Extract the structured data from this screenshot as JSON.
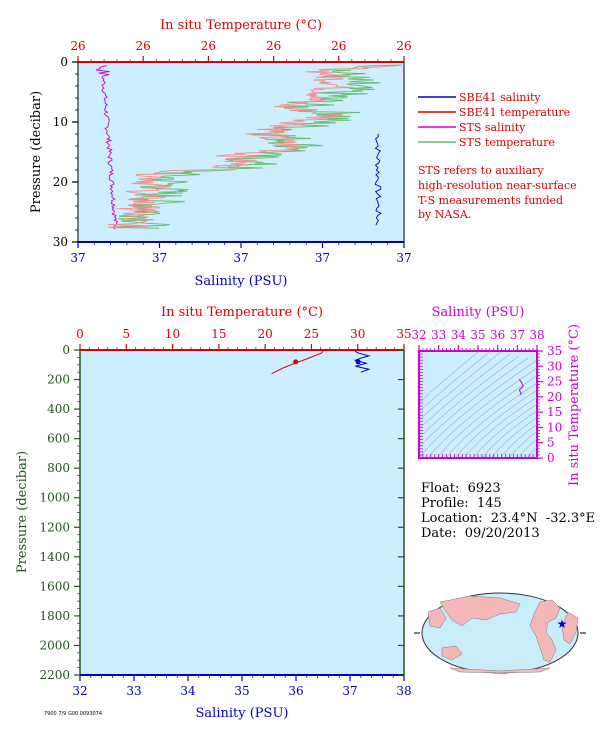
{
  "colors": {
    "plot_bg": "#cceeff",
    "red": "#dd0000",
    "blue": "#0000cc",
    "magenta": "#cc00cc",
    "green": "#66bb66",
    "salmon": "#f29090",
    "pressure_axis": "#225522",
    "map_ocean": "#c8ecf8",
    "map_land": "#f4b8b8"
  },
  "top_panel": {
    "top_axis_label": "In situ Temperature (°C)",
    "top_ticks": [
      "26",
      "26",
      "26",
      "26",
      "26",
      "26"
    ],
    "bottom_axis_label": "Salinity (PSU)",
    "bottom_ticks": [
      "37",
      "37",
      "37",
      "37",
      "37"
    ],
    "left_axis_label": "Pressure (decibar)",
    "left_ticks": [
      "0",
      "10",
      "20",
      "30"
    ]
  },
  "legend": {
    "items": [
      {
        "label": "SBE41 salinity",
        "color": "#0000cc"
      },
      {
        "label": "SBE41 temperature",
        "color": "#dd0000"
      },
      {
        "label": "STS salinity",
        "color": "#cc00cc"
      },
      {
        "label": "STS temperature",
        "color": "#66bb66"
      }
    ],
    "note": [
      "STS refers to auxiliary",
      "high-resolution near-surface",
      "T-S measurements funded",
      "by NASA."
    ]
  },
  "bottom_panel": {
    "top_axis_label": "In situ Temperature (°C)",
    "top_ticks": [
      "0",
      "5",
      "10",
      "15",
      "20",
      "25",
      "30",
      "35"
    ],
    "bottom_axis_label": "Salinity (PSU)",
    "bottom_ticks": [
      "32",
      "33",
      "34",
      "35",
      "36",
      "37",
      "38"
    ],
    "left_axis_label": "Pressure (decibar)",
    "left_ticks": [
      "0",
      "200",
      "400",
      "600",
      "800",
      "1000",
      "1200",
      "1400",
      "1600",
      "1800",
      "2000",
      "2200"
    ]
  },
  "ts_panel": {
    "top_axis_label": "Salinity (PSU)",
    "top_ticks": [
      "32",
      "33",
      "34",
      "35",
      "36",
      "37",
      "38"
    ],
    "right_axis_label": "In situ Temperature (°C)",
    "right_ticks": [
      "0",
      "5",
      "10",
      "15",
      "20",
      "25",
      "30",
      "35"
    ]
  },
  "float_info": {
    "float": "Float:  6923",
    "profile": "Profile:  145",
    "location": "Location:  23.4°N  -32.3°E",
    "date": "Date:  09/20/2013"
  },
  "footer": "7900 7/9 G00 0093074",
  "chart_data": [
    {
      "type": "line",
      "title": "",
      "xlabel": "Salinity (PSU)",
      "x2label": "In situ Temperature (°C)",
      "ylabel": "Pressure (decibar)",
      "ylim": [
        30,
        0
      ],
      "series": [
        {
          "name": "SBE41 salinity",
          "axis": "salinity",
          "x": [
            37.45,
            37.45,
            37.44,
            37.45,
            37.44,
            37.44,
            37.43,
            37.43
          ],
          "y": [
            4,
            8,
            11,
            14,
            17,
            20,
            24,
            28
          ]
        },
        {
          "name": "SBE41 temperature",
          "axis": "temperature",
          "x": [
            26.55,
            26.45,
            26.42,
            26.3,
            26.25,
            26.1,
            26.0,
            25.95,
            25.92
          ],
          "y": [
            2,
            5,
            9,
            12,
            16,
            19,
            22,
            25,
            28
          ]
        },
        {
          "name": "STS salinity",
          "axis": "salinity",
          "x": [
            36.98,
            37.0,
            37.0,
            37.0,
            37.01,
            37.01,
            37.02,
            37.02,
            37.03
          ],
          "y": [
            1,
            4,
            8,
            12,
            16,
            20,
            23,
            26,
            28
          ]
        },
        {
          "name": "STS temperature",
          "axis": "temperature",
          "x": [
            26.55,
            26.48,
            26.45,
            26.35,
            26.28,
            26.12,
            26.02,
            25.98,
            25.95
          ],
          "y": [
            1,
            4,
            8,
            12,
            16,
            19,
            22,
            25,
            28
          ]
        }
      ]
    },
    {
      "type": "line",
      "title": "",
      "xlabel": "Salinity (PSU)",
      "x2label": "In situ Temperature (°C)",
      "ylabel": "Pressure (decibar)",
      "xlim": [
        32,
        38
      ],
      "x2lim": [
        0,
        35
      ],
      "ylim": [
        2200,
        0
      ],
      "series": [
        {
          "name": "SBE41 salinity",
          "axis": "salinity",
          "x": [
            37.1,
            37.1,
            37.15,
            37.35,
            37.2,
            37.1,
            37.3,
            37.1,
            37.35,
            37.2
          ],
          "y": [
            0,
            10,
            20,
            40,
            55,
            70,
            90,
            110,
            130,
            150
          ]
        },
        {
          "name": "SBE41 temperature",
          "axis": "temperature",
          "x": [
            26.3,
            26.1,
            24.5,
            23.2,
            22.0,
            20.7
          ],
          "y": [
            0,
            20,
            60,
            90,
            120,
            160
          ]
        }
      ],
      "markers": [
        {
          "series": "SBE41 temperature",
          "x": 23.3,
          "y": 80
        },
        {
          "series": "SBE41 salinity",
          "x": 37.15,
          "y": 80
        }
      ]
    },
    {
      "type": "scatter",
      "title": "",
      "xlabel": "Salinity (PSU)",
      "ylabel": "In situ Temperature (°C)",
      "xlim": [
        32,
        38
      ],
      "ylim": [
        0,
        35
      ],
      "series": [
        {
          "name": "T-S",
          "x": [
            37.1,
            37.2,
            37.3,
            37.1,
            37.2,
            37.15
          ],
          "y": [
            25.8,
            24.8,
            23.5,
            22.2,
            21.0,
            20.7
          ]
        }
      ]
    }
  ]
}
